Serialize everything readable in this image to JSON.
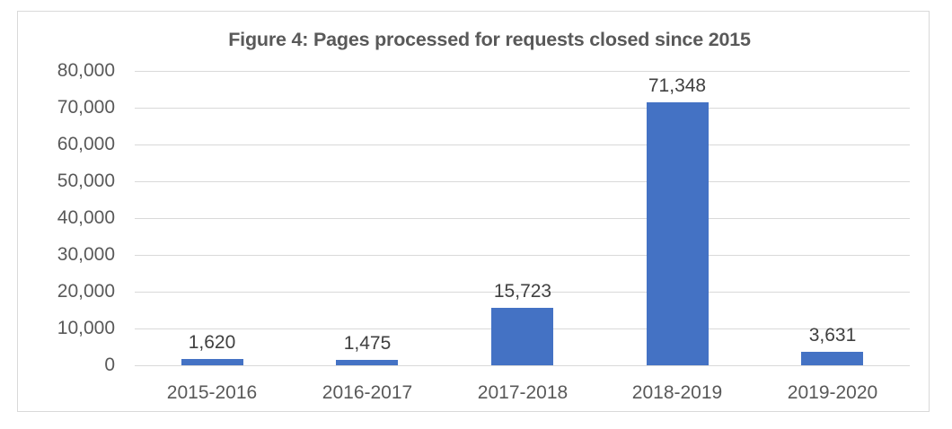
{
  "chart_data": {
    "type": "bar",
    "title": "Figure 4: Pages processed for requests closed since 2015",
    "xlabel": "",
    "ylabel": "",
    "categories": [
      "2015-2016",
      "2016-2017",
      "2017-2018",
      "2018-2019",
      "2019-2020"
    ],
    "values": [
      1620,
      1475,
      15723,
      71348,
      3631
    ],
    "data_labels": [
      "1,620",
      "1,475",
      "15,723",
      "71,348",
      "3,631"
    ],
    "ylim": [
      0,
      80000
    ],
    "yticks": [
      "0",
      "10,000",
      "20,000",
      "30,000",
      "40,000",
      "50,000",
      "60,000",
      "70,000",
      "80,000"
    ],
    "grid": true,
    "legend": "none",
    "bar_color": "#4472c4"
  }
}
